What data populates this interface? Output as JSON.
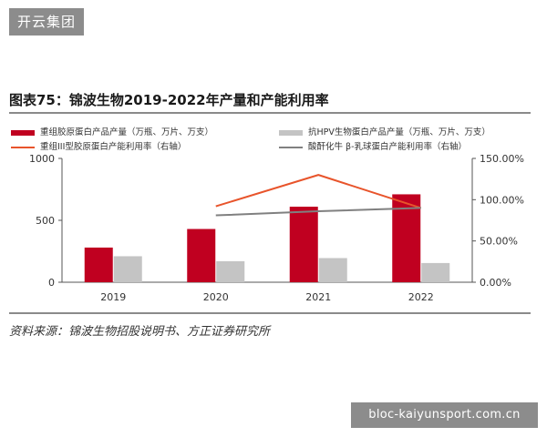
{
  "site_badge": "开云集团",
  "figure_title": "图表75：锦波生物2019-2022年产量和产能利用率",
  "legend": {
    "item1": "重组胶原蛋白产品产量（万瓶、万片、万支）",
    "item2": "抗HPV生物蛋白产品产量（万瓶、万片、万支）",
    "item3": "重组III型胶原蛋白产能利用率（右轴）",
    "item4": "酸酐化牛 β-乳球蛋白产能利用率（右轴）"
  },
  "colors": {
    "bar_collagen": "#c00020",
    "bar_hpv": "#c4c4c4",
    "line_collagen": "#e8542b",
    "line_beta": "#808080"
  },
  "chart_data": {
    "type": "bar",
    "categories": [
      "2019",
      "2020",
      "2021",
      "2022"
    ],
    "series": [
      {
        "name": "重组胶原蛋白产品产量（万瓶、万片、万支）",
        "type": "bar",
        "axis": "left",
        "values": [
          280,
          430,
          610,
          710
        ]
      },
      {
        "name": "抗HPV生物蛋白产品产量（万瓶、万片、万支）",
        "type": "bar",
        "axis": "left",
        "values": [
          210,
          170,
          195,
          155
        ]
      },
      {
        "name": "重组III型胶原蛋白产能利用率（右轴）",
        "type": "line",
        "axis": "right",
        "values": [
          null,
          0.92,
          1.3,
          0.9
        ]
      },
      {
        "name": "酸酐化牛 β-乳球蛋白产能利用率（右轴）",
        "type": "line",
        "axis": "right",
        "values": [
          null,
          0.81,
          0.86,
          0.9
        ]
      }
    ],
    "y_left": {
      "min": 0,
      "max": 1000,
      "ticks": [
        0,
        500,
        1000
      ],
      "tick_labels": [
        "0",
        "500",
        "1000"
      ]
    },
    "y_right": {
      "min": 0,
      "max": 1.5,
      "ticks": [
        0,
        0.5,
        1.0,
        1.5
      ],
      "tick_labels": [
        "0.00%",
        "50.00%",
        "100.00%",
        "150.00%"
      ]
    },
    "grid": false,
    "legend_position": "top"
  },
  "source_note": "资料来源：锦波生物招股说明书、方正证券研究所",
  "watermark": "bloc-kaiyunsport.com.cn"
}
